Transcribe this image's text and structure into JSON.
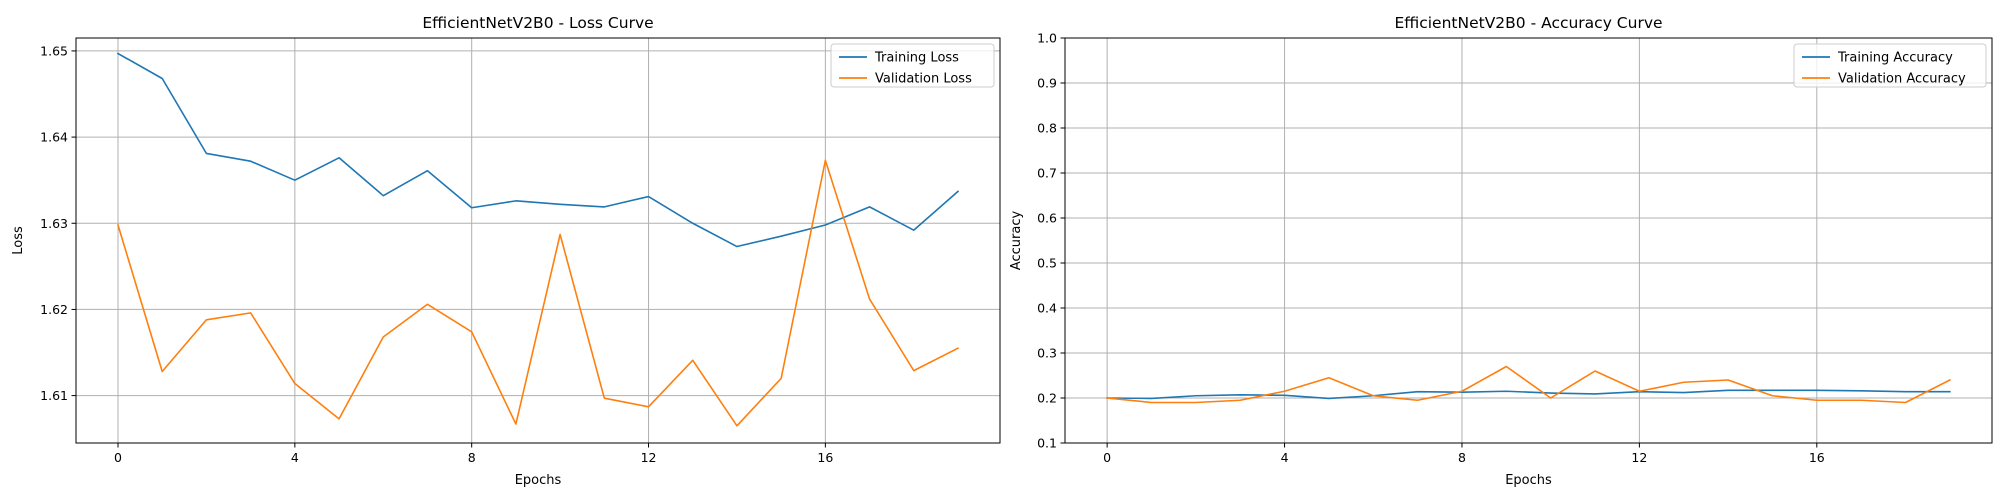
{
  "chart_data": [
    {
      "type": "line",
      "title": "EfficientNetV2B0 - Loss Curve",
      "xlabel": "Epochs",
      "ylabel": "Loss",
      "xlim": [
        -0.95,
        19.95
      ],
      "ylim": [
        1.6045,
        1.6515
      ],
      "xticks": [
        0,
        4,
        8,
        12,
        16
      ],
      "yticks": [
        1.61,
        1.62,
        1.63,
        1.64,
        1.65
      ],
      "ytick_labels": [
        "1.61",
        "1.62",
        "1.63",
        "1.64",
        "1.65"
      ],
      "grid": true,
      "legend_position": "top-right",
      "x": [
        0,
        1,
        2,
        3,
        4,
        5,
        6,
        7,
        8,
        9,
        10,
        11,
        12,
        13,
        14,
        15,
        16,
        17,
        18,
        19
      ],
      "series": [
        {
          "name": "Training Loss",
          "color": "#1f77b4",
          "values": [
            1.6497,
            1.6468,
            1.6381,
            1.6372,
            1.635,
            1.6376,
            1.6332,
            1.6361,
            1.6318,
            1.6326,
            1.6322,
            1.6319,
            1.6331,
            1.63,
            1.6273,
            1.6285,
            1.6298,
            1.6319,
            1.6292,
            1.6337
          ]
        },
        {
          "name": "Validation Loss",
          "color": "#ff7f0e",
          "values": [
            1.6298,
            1.6128,
            1.6188,
            1.6196,
            1.6114,
            1.6073,
            1.6168,
            1.6206,
            1.6174,
            1.6067,
            1.6287,
            1.6097,
            1.6087,
            1.6141,
            1.6065,
            1.612,
            1.6373,
            1.6212,
            1.6129,
            1.6155
          ]
        }
      ]
    },
    {
      "type": "line",
      "title": "EfficientNetV2B0 - Accuracy Curve",
      "xlabel": "Epochs",
      "ylabel": "Accuracy",
      "xlim": [
        -0.95,
        19.95
      ],
      "ylim": [
        0.1,
        1.0
      ],
      "xticks": [
        0,
        4,
        8,
        12,
        16
      ],
      "yticks": [
        0.1,
        0.2,
        0.3,
        0.4,
        0.5,
        0.6,
        0.7,
        0.8,
        0.9,
        1.0
      ],
      "ytick_labels": [
        "0.1",
        "0.2",
        "0.3",
        "0.4",
        "0.5",
        "0.6",
        "0.7",
        "0.8",
        "0.9",
        "1.0"
      ],
      "grid": true,
      "legend_position": "top-right",
      "x": [
        0,
        1,
        2,
        3,
        4,
        5,
        6,
        7,
        8,
        9,
        10,
        11,
        12,
        13,
        14,
        15,
        16,
        17,
        18,
        19
      ],
      "series": [
        {
          "name": "Training Accuracy",
          "color": "#1f77b4",
          "values": [
            0.2,
            0.199,
            0.205,
            0.207,
            0.206,
            0.199,
            0.205,
            0.214,
            0.213,
            0.215,
            0.211,
            0.209,
            0.214,
            0.212,
            0.217,
            0.217,
            0.217,
            0.216,
            0.214,
            0.214
          ]
        },
        {
          "name": "Validation Accuracy",
          "color": "#ff7f0e",
          "values": [
            0.2,
            0.19,
            0.19,
            0.195,
            0.215,
            0.245,
            0.205,
            0.195,
            0.215,
            0.27,
            0.2,
            0.26,
            0.215,
            0.235,
            0.24,
            0.205,
            0.195,
            0.195,
            0.19,
            0.24
          ]
        }
      ]
    }
  ]
}
